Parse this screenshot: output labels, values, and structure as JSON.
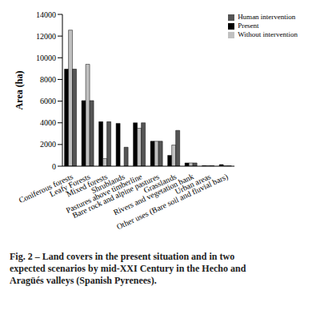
{
  "chart_data": {
    "type": "bar",
    "caption": "Fig. 2 – Land covers in the present situation and in two expected scenarios by mid-XXI Century in the Hecho and Aragüés valleys (Spanish Pyrenees).",
    "y_label": "Area (ha)",
    "categories": [
      "Coniferous forests",
      "Leafy Forests",
      "Mixed forests",
      "Shrublands",
      "Pastures above timberline",
      "Bare rock and alpine pastures",
      "Grasslands",
      "Rivers and vegetation bank",
      "Urban areas",
      "Other uses (Bare soil and fluvial bars)"
    ],
    "series": [
      {
        "name": "Present",
        "color": "#000000",
        "values": [
          8950,
          6050,
          4100,
          3950,
          4000,
          2300,
          1000,
          300,
          50,
          150
        ]
      },
      {
        "name": "Without intervention",
        "color": "#c0c0c0",
        "values": [
          12550,
          9400,
          700,
          0,
          3500,
          2300,
          1950,
          300,
          50,
          30
        ]
      },
      {
        "name": "Human intervention",
        "color": "#555555",
        "values": [
          8950,
          6050,
          4100,
          1750,
          4000,
          2300,
          3300,
          300,
          50,
          30
        ]
      }
    ],
    "ylim": [
      0,
      14000
    ],
    "yticks": [
      0,
      2000,
      4000,
      6000,
      8000,
      10000,
      12000,
      14000
    ],
    "grid": false,
    "legend": "top-right"
  }
}
